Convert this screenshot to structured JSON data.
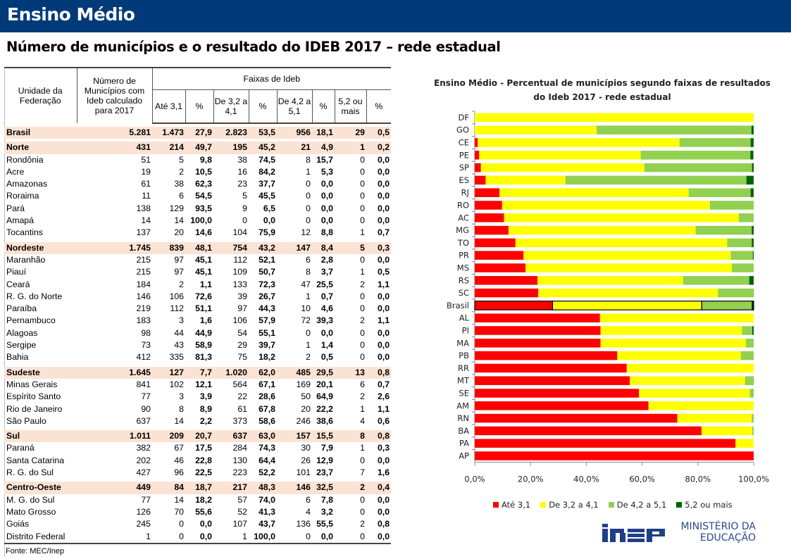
{
  "header": {
    "banner_title": "Ensino Médio",
    "subtitle": "Número de municípios e o resultado do IDEB 2017 – rede estadual"
  },
  "table": {
    "col_uf": "Unidade da Federação",
    "col_num": "Número de Municípios com Ideb calculado para 2017",
    "col_faixas": "Faixas de Ideb",
    "sub_headers": [
      "Até 3,1",
      "%",
      "De 3,2 a 4,1",
      "%",
      "De 4,2 a 5,1",
      "%",
      "5,2 ou mais",
      "%"
    ],
    "groups": [
      {
        "region": [
          "Brasil",
          "5.281",
          "1.473",
          "27,9",
          "2.823",
          "53,5",
          "956",
          "18,1",
          "29",
          "0,5"
        ],
        "rows": []
      },
      {
        "region": [
          "Norte",
          "431",
          "214",
          "49,7",
          "195",
          "45,2",
          "21",
          "4,9",
          "1",
          "0,2"
        ],
        "rows": [
          [
            "Rondônia",
            "51",
            "5",
            "9,8",
            "38",
            "74,5",
            "8",
            "15,7",
            "0",
            "0,0"
          ],
          [
            "Acre",
            "19",
            "2",
            "10,5",
            "16",
            "84,2",
            "1",
            "5,3",
            "0",
            "0,0"
          ],
          [
            "Amazonas",
            "61",
            "38",
            "62,3",
            "23",
            "37,7",
            "0",
            "0,0",
            "0",
            "0,0"
          ],
          [
            "Roraima",
            "11",
            "6",
            "54,5",
            "5",
            "45,5",
            "0",
            "0,0",
            "0",
            "0,0"
          ],
          [
            "Pará",
            "138",
            "129",
            "93,5",
            "9",
            "6,5",
            "0",
            "0,0",
            "0",
            "0,0"
          ],
          [
            "Amapá",
            "14",
            "14",
            "100,0",
            "0",
            "0,0",
            "0",
            "0,0",
            "0",
            "0,0"
          ],
          [
            "Tocantins",
            "137",
            "20",
            "14,6",
            "104",
            "75,9",
            "12",
            "8,8",
            "1",
            "0,7"
          ]
        ]
      },
      {
        "region": [
          "Nordeste",
          "1.745",
          "839",
          "48,1",
          "754",
          "43,2",
          "147",
          "8,4",
          "5",
          "0,3"
        ],
        "rows": [
          [
            "Maranhão",
            "215",
            "97",
            "45,1",
            "112",
            "52,1",
            "6",
            "2,8",
            "0",
            "0,0"
          ],
          [
            "Piauí",
            "215",
            "97",
            "45,1",
            "109",
            "50,7",
            "8",
            "3,7",
            "1",
            "0,5"
          ],
          [
            "Ceará",
            "184",
            "2",
            "1,1",
            "133",
            "72,3",
            "47",
            "25,5",
            "2",
            "1,1"
          ],
          [
            "R. G. do Norte",
            "146",
            "106",
            "72,6",
            "39",
            "26,7",
            "1",
            "0,7",
            "0",
            "0,0"
          ],
          [
            "Paraíba",
            "219",
            "112",
            "51,1",
            "97",
            "44,3",
            "10",
            "4,6",
            "0",
            "0,0"
          ],
          [
            "Pernambuco",
            "183",
            "3",
            "1,6",
            "106",
            "57,9",
            "72",
            "39,3",
            "2",
            "1,1"
          ],
          [
            "Alagoas",
            "98",
            "44",
            "44,9",
            "54",
            "55,1",
            "0",
            "0,0",
            "0",
            "0,0"
          ],
          [
            "Sergipe",
            "73",
            "43",
            "58,9",
            "29",
            "39,7",
            "1",
            "1,4",
            "0",
            "0,0"
          ],
          [
            "Bahia",
            "412",
            "335",
            "81,3",
            "75",
            "18,2",
            "2",
            "0,5",
            "0",
            "0,0"
          ]
        ]
      },
      {
        "region": [
          "Sudeste",
          "1.645",
          "127",
          "7,7",
          "1.020",
          "62,0",
          "485",
          "29,5",
          "13",
          "0,8"
        ],
        "rows": [
          [
            "Minas Gerais",
            "841",
            "102",
            "12,1",
            "564",
            "67,1",
            "169",
            "20,1",
            "6",
            "0,7"
          ],
          [
            "Espírito Santo",
            "77",
            "3",
            "3,9",
            "22",
            "28,6",
            "50",
            "64,9",
            "2",
            "2,6"
          ],
          [
            "Rio de Janeiro",
            "90",
            "8",
            "8,9",
            "61",
            "67,8",
            "20",
            "22,2",
            "1",
            "1,1"
          ],
          [
            "São Paulo",
            "637",
            "14",
            "2,2",
            "373",
            "58,6",
            "246",
            "38,6",
            "4",
            "0,6"
          ]
        ]
      },
      {
        "region": [
          "Sul",
          "1.011",
          "209",
          "20,7",
          "637",
          "63,0",
          "157",
          "15,5",
          "8",
          "0,8"
        ],
        "rows": [
          [
            "Paraná",
            "382",
            "67",
            "17,5",
            "284",
            "74,3",
            "30",
            "7,9",
            "1",
            "0,3"
          ],
          [
            "Santa Catarina",
            "202",
            "46",
            "22,8",
            "130",
            "64,4",
            "26",
            "12,9",
            "0",
            "0,0"
          ],
          [
            "R. G. do Sul",
            "427",
            "96",
            "22,5",
            "223",
            "52,2",
            "101",
            "23,7",
            "7",
            "1,6"
          ]
        ]
      },
      {
        "region": [
          "Centro-Oeste",
          "449",
          "84",
          "18,7",
          "217",
          "48,3",
          "146",
          "32,5",
          "2",
          "0,4"
        ],
        "rows": [
          [
            "M. G. do Sul",
            "77",
            "14",
            "18,2",
            "57",
            "74,0",
            "6",
            "7,8",
            "0",
            "0,0"
          ],
          [
            "Mato Grosso",
            "126",
            "70",
            "55,6",
            "52",
            "41,3",
            "4",
            "3,2",
            "0",
            "0,0"
          ],
          [
            "Goiás",
            "245",
            "0",
            "0,0",
            "107",
            "43,7",
            "136",
            "55,5",
            "2",
            "0,8"
          ],
          [
            "Distrito Federal",
            "1",
            "0",
            "0,0",
            "1",
            "100,0",
            "0",
            "0,0",
            "0",
            "0,0"
          ]
        ]
      }
    ],
    "source": "Fonte: MEC/Inep"
  },
  "chart_data": {
    "type": "bar",
    "orientation": "horizontal",
    "stacked": true,
    "title": "Ensino Médio - Percentual de municípios segundo faixas de resultados do Ideb 2017 -  rede estadual",
    "title_lines": [
      "Ensino Médio - Percentual de municípios segundo faixas de resultados",
      "do Ideb 2017 -  rede estadual"
    ],
    "categories": [
      "DF",
      "GO",
      "CE",
      "PE",
      "SP",
      "ES",
      "RJ",
      "RO",
      "AC",
      "MG",
      "TO",
      "PR",
      "MS",
      "RS",
      "SC",
      "Brasil",
      "AL",
      "PI",
      "MA",
      "PB",
      "RR",
      "MT",
      "SE",
      "AM",
      "RN",
      "BA",
      "PA",
      "AP"
    ],
    "highlight_category": "Brasil",
    "series": [
      {
        "name": "Até 3,1",
        "color": "#ff0000",
        "values": [
          0,
          0,
          1.1,
          1.6,
          2.2,
          3.9,
          8.9,
          9.8,
          10.5,
          12.1,
          14.6,
          17.5,
          18.2,
          22.5,
          22.8,
          27.9,
          44.9,
          45.1,
          45.1,
          51.1,
          54.5,
          55.6,
          58.9,
          62.3,
          72.6,
          81.3,
          93.5,
          100
        ]
      },
      {
        "name": "De 3,2 a 4,1",
        "color": "#ffff00",
        "values": [
          100,
          43.7,
          72.3,
          57.9,
          58.6,
          28.6,
          67.8,
          74.5,
          84.2,
          67.1,
          75.9,
          74.3,
          74.0,
          52.2,
          64.4,
          53.5,
          55.1,
          50.7,
          52.1,
          44.3,
          45.5,
          41.3,
          39.7,
          37.7,
          26.7,
          18.2,
          6.5,
          0
        ]
      },
      {
        "name": "De 4,2 a 5,1",
        "color": "#92d050",
        "values": [
          0,
          55.5,
          25.5,
          39.3,
          38.6,
          64.9,
          22.2,
          15.7,
          5.3,
          20.1,
          8.8,
          7.9,
          7.8,
          23.7,
          12.9,
          18.1,
          0,
          3.7,
          2.8,
          4.6,
          0,
          3.2,
          1.4,
          0,
          0.7,
          0.5,
          0,
          0
        ]
      },
      {
        "name": "5,2 ou mais",
        "color": "#006400",
        "values": [
          0,
          0.8,
          1.1,
          1.1,
          0.6,
          2.6,
          1.1,
          0,
          0,
          0.7,
          0.7,
          0.3,
          0,
          1.6,
          0,
          0.5,
          0,
          0.5,
          0,
          0,
          0,
          0,
          0,
          0,
          0,
          0,
          0,
          0
        ]
      }
    ],
    "xlim": [
      0,
      100
    ],
    "x_ticks": [
      "0,0%",
      "20,0%",
      "40,0%",
      "60,0%",
      "80,0%",
      "100,0%"
    ],
    "xlabel": "",
    "ylabel": "",
    "grid": false,
    "legend_position": "bottom"
  },
  "footer": {
    "logo_text": "INEP",
    "ministry_line1": "MINISTÉRIO DA",
    "ministry_line2": "EDUCAÇÃO"
  }
}
